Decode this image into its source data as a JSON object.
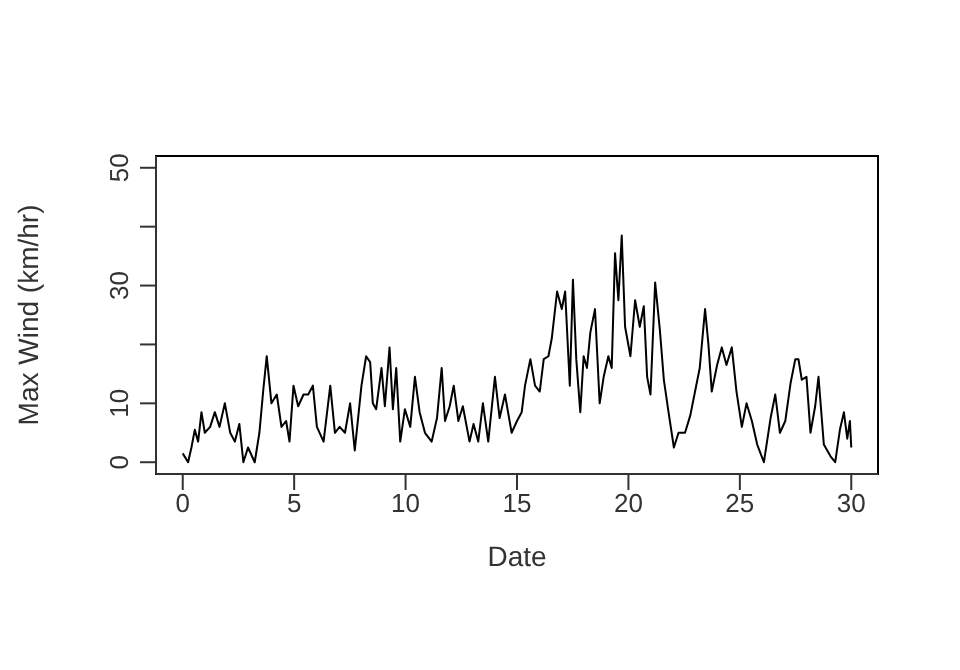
{
  "chart_data": {
    "type": "line",
    "xlabel": "Date",
    "ylabel": "Max Wind (km/hr)",
    "x": [
      0,
      0.24,
      0.39,
      0.54,
      0.69,
      0.84,
      0.99,
      1.23,
      1.44,
      1.65,
      1.89,
      2.13,
      2.34,
      2.54,
      2.72,
      2.93,
      3.23,
      3.44,
      3.62,
      3.77,
      3.98,
      4.22,
      4.43,
      4.64,
      4.79,
      4.97,
      5.18,
      5.42,
      5.63,
      5.84,
      6.02,
      6.32,
      6.62,
      6.83,
      7.04,
      7.28,
      7.51,
      7.72,
      8.02,
      8.23,
      8.41,
      8.53,
      8.68,
      8.92,
      9.07,
      9.28,
      9.43,
      9.58,
      9.76,
      9.97,
      10.21,
      10.42,
      10.63,
      10.87,
      11.17,
      11.41,
      11.62,
      11.77,
      11.98,
      12.16,
      12.37,
      12.57,
      12.87,
      13.05,
      13.26,
      13.47,
      13.71,
      14.01,
      14.22,
      14.46,
      14.76,
      15.0,
      15.21,
      15.36,
      15.6,
      15.81,
      16.02,
      16.2,
      16.41,
      16.56,
      16.8,
      17.01,
      17.16,
      17.37,
      17.51,
      17.66,
      17.84,
      17.99,
      18.14,
      18.29,
      18.5,
      18.71,
      18.89,
      19.1,
      19.25,
      19.4,
      19.55,
      19.7,
      19.85,
      20.09,
      20.3,
      20.51,
      20.69,
      20.84,
      20.99,
      21.2,
      21.41,
      21.59,
      21.8,
      22.04,
      22.25,
      22.54,
      22.78,
      22.99,
      23.2,
      23.44,
      23.59,
      23.74,
      23.98,
      24.19,
      24.4,
      24.64,
      24.85,
      25.09,
      25.3,
      25.54,
      25.78,
      26.08,
      26.38,
      26.59,
      26.8,
      27.04,
      27.28,
      27.49,
      27.63,
      27.78,
      27.99,
      28.17,
      28.38,
      28.53,
      28.77,
      29.07,
      29.28,
      29.49,
      29.67,
      29.82,
      29.94,
      30
    ],
    "series": [
      {
        "color": "#000000",
        "values": [
          1.5,
          0,
          2.5,
          5.5,
          3.5,
          8.5,
          5,
          6,
          8.5,
          6,
          10,
          5,
          3.5,
          6.5,
          0,
          2.5,
          0,
          5,
          12.5,
          18,
          10,
          11.5,
          6,
          7,
          3.5,
          13,
          9.5,
          11.5,
          11.5,
          13,
          6,
          3.5,
          13,
          5,
          6,
          5,
          10,
          2,
          13,
          18,
          17,
          10,
          9,
          16,
          9.5,
          19.5,
          9,
          16,
          3.5,
          9,
          6,
          14.5,
          8.5,
          5,
          3.5,
          7.5,
          16,
          7,
          9.5,
          13,
          7,
          9.5,
          3.5,
          6.5,
          3.5,
          10,
          3.5,
          14.5,
          7.5,
          11.5,
          5,
          7,
          8.5,
          13,
          17.5,
          13,
          12,
          17.5,
          18,
          21,
          29,
          26,
          29,
          13,
          31,
          17.5,
          8.5,
          18,
          16,
          22,
          26,
          10,
          14.5,
          18,
          16,
          35.5,
          27.5,
          38.5,
          23,
          18,
          27.5,
          23,
          26.5,
          14.5,
          11.5,
          30.5,
          22.5,
          14,
          8.5,
          2.5,
          5,
          5,
          8,
          12,
          16,
          26,
          20,
          12,
          16.5,
          19.5,
          16.5,
          19.5,
          12,
          6,
          10,
          7,
          3,
          0,
          7.5,
          11.5,
          5,
          7,
          13.5,
          17.5,
          17.5,
          14,
          14.5,
          5,
          9.5,
          14.5,
          3,
          1,
          0,
          5.5,
          8.5,
          4,
          7,
          2.5
        ]
      }
    ],
    "xlim": [
      -1.2,
      31.2
    ],
    "xticks": [
      0,
      5,
      10,
      15,
      20,
      25,
      30
    ],
    "ylim": [
      -2,
      52
    ],
    "yticks": [
      0,
      10,
      {
        "value": 20,
        "label": null
      },
      30,
      {
        "value": 40,
        "label": null
      },
      50
    ],
    "marker": "none",
    "line_style": "solid",
    "grid": false,
    "legend": false
  }
}
